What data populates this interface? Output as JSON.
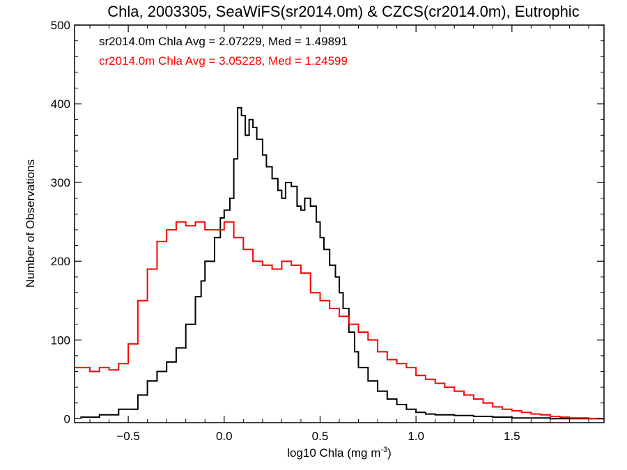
{
  "chart_data": {
    "type": "histogram",
    "title": "Chla, 2003305, SeaWiFS(sr2014.0m) & CZCS(cr2014.0m), Eutrophic",
    "xlabel": "log10 Chla (mg m",
    "xlabel_sup": "-3",
    "xlabel_end": ")",
    "ylabel": "Number of Observations",
    "xlim": [
      -0.78,
      1.98
    ],
    "ylim": [
      -5,
      500
    ],
    "xticks": [
      -0.5,
      0.0,
      0.5,
      1.0,
      1.5
    ],
    "xtick_labels": [
      "−0.5",
      "0.0",
      "0.5",
      "1.0",
      "1.5"
    ],
    "yticks": [
      0,
      100,
      200,
      300,
      400,
      500
    ],
    "ytick_labels": [
      "0",
      "100",
      "200",
      "300",
      "400",
      "500"
    ],
    "legend_placement": "top-left",
    "series": [
      {
        "name": "sr2014.0m Chla Avg = 2.07229, Med = 1.49891",
        "color": "#000000",
        "x": [
          -0.75,
          -0.65,
          -0.55,
          -0.45,
          -0.4,
          -0.35,
          -0.3,
          -0.25,
          -0.2,
          -0.15,
          -0.12,
          -0.1,
          -0.05,
          -0.02,
          0.0,
          0.03,
          0.05,
          0.07,
          0.09,
          0.11,
          0.13,
          0.15,
          0.17,
          0.2,
          0.22,
          0.25,
          0.28,
          0.3,
          0.32,
          0.35,
          0.38,
          0.4,
          0.42,
          0.45,
          0.48,
          0.5,
          0.52,
          0.55,
          0.58,
          0.6,
          0.62,
          0.65,
          0.68,
          0.7,
          0.75,
          0.8,
          0.85,
          0.9,
          0.95,
          1.0,
          1.05,
          1.1,
          1.2,
          1.3,
          1.4,
          1.5,
          1.6,
          1.7,
          1.8,
          1.9,
          1.98
        ],
        "y": [
          2,
          5,
          12,
          30,
          48,
          60,
          72,
          90,
          120,
          155,
          175,
          200,
          230,
          255,
          265,
          280,
          330,
          395,
          385,
          360,
          380,
          370,
          355,
          335,
          320,
          305,
          290,
          280,
          300,
          295,
          270,
          265,
          280,
          270,
          250,
          230,
          215,
          195,
          180,
          160,
          140,
          110,
          85,
          65,
          48,
          35,
          25,
          18,
          12,
          8,
          6,
          5,
          4,
          3,
          2,
          1,
          1,
          0,
          0,
          0,
          0
        ]
      },
      {
        "name": "cr2014.0m Chla Avg = 3.05228, Med = 1.24599",
        "color": "#ff0000",
        "x": [
          -0.78,
          -0.7,
          -0.65,
          -0.6,
          -0.55,
          -0.5,
          -0.45,
          -0.4,
          -0.35,
          -0.3,
          -0.25,
          -0.2,
          -0.15,
          -0.1,
          -0.05,
          0.0,
          0.05,
          0.1,
          0.15,
          0.2,
          0.25,
          0.3,
          0.35,
          0.4,
          0.45,
          0.5,
          0.55,
          0.6,
          0.65,
          0.7,
          0.75,
          0.8,
          0.85,
          0.9,
          0.95,
          1.0,
          1.05,
          1.1,
          1.15,
          1.2,
          1.25,
          1.3,
          1.35,
          1.4,
          1.45,
          1.5,
          1.55,
          1.6,
          1.65,
          1.7,
          1.75,
          1.8,
          1.85,
          1.9,
          1.98
        ],
        "y": [
          65,
          60,
          65,
          62,
          70,
          95,
          150,
          190,
          225,
          240,
          250,
          245,
          250,
          240,
          240,
          250,
          230,
          215,
          200,
          195,
          190,
          200,
          195,
          185,
          160,
          150,
          140,
          130,
          120,
          110,
          100,
          85,
          75,
          70,
          65,
          55,
          50,
          45,
          40,
          35,
          30,
          25,
          20,
          15,
          12,
          10,
          8,
          6,
          5,
          3,
          2,
          1,
          1,
          0,
          0
        ]
      }
    ]
  }
}
